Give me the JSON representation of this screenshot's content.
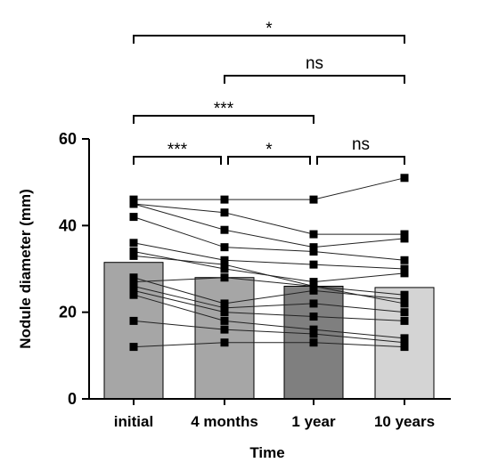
{
  "chart_data": {
    "type": "bar",
    "xlabel": "Time",
    "ylabel": "Nodule diameter (mm)",
    "ylim": [
      0,
      60
    ],
    "yticks": [
      0,
      20,
      40,
      60
    ],
    "categories": [
      "initial",
      "4 months",
      "1 year",
      "10 years"
    ],
    "bar_values": [
      31.5,
      28,
      26,
      25.7
    ],
    "bar_colors": [
      "#a6a6a6",
      "#a6a6a6",
      "#7f7f7f",
      "#d4d4d4"
    ],
    "subjects": [
      [
        46,
        46,
        46,
        51
      ],
      [
        45,
        43,
        38,
        38
      ],
      [
        45,
        39,
        35,
        37
      ],
      [
        42,
        35,
        34,
        32
      ],
      [
        36,
        32,
        31,
        30
      ],
      [
        34,
        30,
        27,
        29
      ],
      [
        33,
        31,
        26,
        24
      ],
      [
        28,
        22,
        25,
        23
      ],
      [
        27,
        28,
        26,
        22
      ],
      [
        26,
        21,
        22,
        20
      ],
      [
        25,
        20,
        19,
        18
      ],
      [
        24,
        18,
        16,
        14
      ],
      [
        18,
        16,
        15,
        13
      ],
      [
        12,
        13,
        13,
        12
      ]
    ],
    "significance": [
      {
        "from": 0,
        "to": 3,
        "label": "*",
        "level": 4
      },
      {
        "from": 1,
        "to": 3,
        "label": "ns",
        "level": 3
      },
      {
        "from": 0,
        "to": 2,
        "label": "***",
        "level": 2
      },
      {
        "from": 0,
        "to": 1,
        "label": "***",
        "level": 1
      },
      {
        "from": 1,
        "to": 2,
        "label": "*",
        "level": 1
      },
      {
        "from": 2,
        "to": 3,
        "label": "ns",
        "level": 1
      }
    ]
  }
}
